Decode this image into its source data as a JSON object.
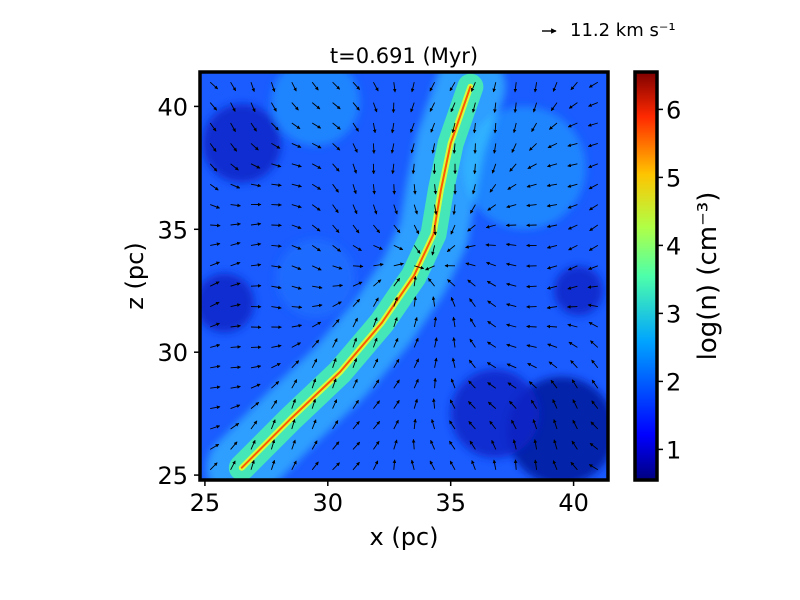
{
  "chart_data": {
    "type": "heatmap",
    "title": "t=0.691 (Myr)",
    "xlabel": "x (pc)",
    "ylabel": "z (pc)",
    "xlim": [
      24.8,
      41.4
    ],
    "ylim": [
      24.8,
      41.4
    ],
    "x_ticks": [
      25,
      30,
      35,
      40
    ],
    "y_ticks": [
      25,
      30,
      35,
      40
    ],
    "quiver_key_label": "11.2 km s⁻¹",
    "quiver_key_value": 11.2,
    "colorbar": {
      "label": "log(n) (cm⁻³)",
      "range": [
        0.55,
        6.55
      ],
      "ticks": [
        1,
        2,
        3,
        4,
        5,
        6
      ],
      "colormap": "jet"
    },
    "filament": {
      "description": "dense filament running diagonally",
      "spine_points": [
        [
          26.5,
          25.3
        ],
        [
          28.5,
          27.3
        ],
        [
          30.5,
          29.2
        ],
        [
          32.2,
          31.2
        ],
        [
          33.5,
          33.1
        ],
        [
          34.3,
          34.8
        ],
        [
          34.6,
          36.6
        ],
        [
          35.0,
          38.5
        ],
        [
          35.8,
          40.8
        ]
      ],
      "peak_log_n": 5.6,
      "ambient_log_n": 2.0
    },
    "grid": false
  }
}
